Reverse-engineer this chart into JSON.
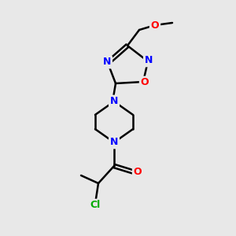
{
  "background_color": "#e8e8e8",
  "bond_color": "#000000",
  "atom_colors": {
    "N": "#0000ff",
    "O": "#ff0000",
    "Cl": "#00aa00"
  },
  "font_size_atom": 9,
  "fig_size": [
    3.0,
    3.0
  ],
  "dpi": 100
}
